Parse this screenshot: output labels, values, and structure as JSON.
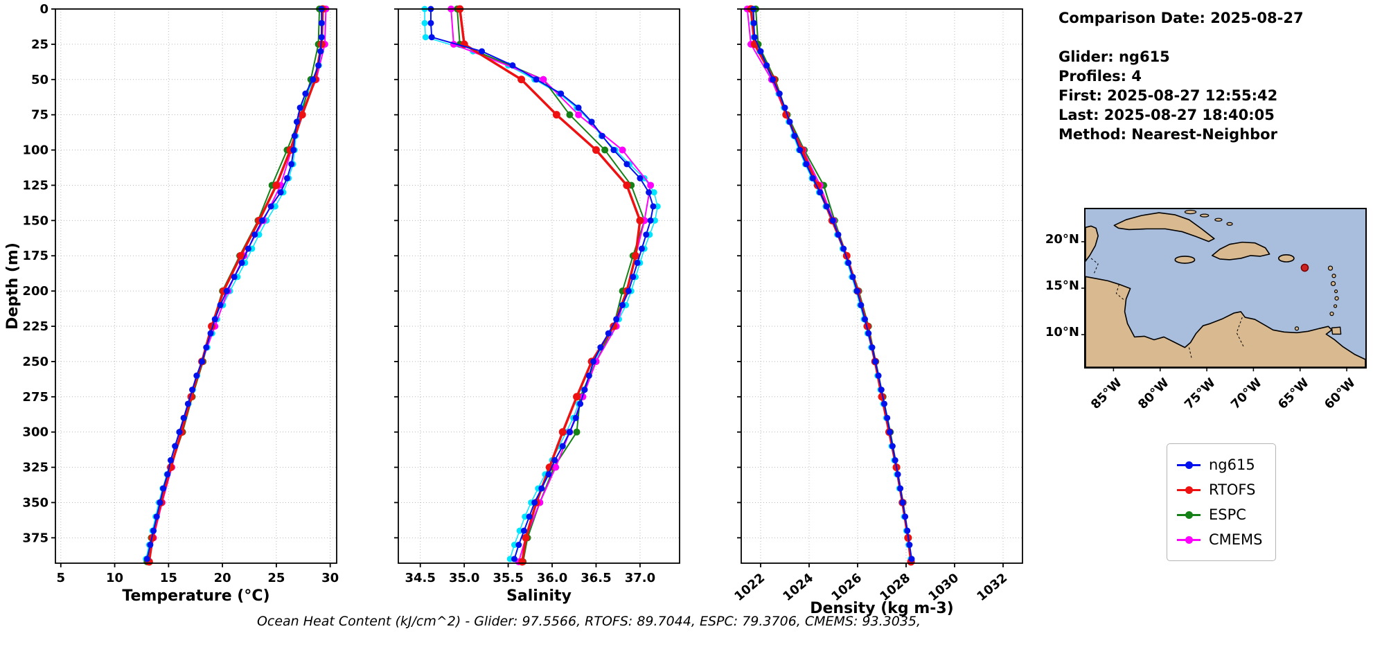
{
  "info_panel": {
    "lines": [
      "Comparison Date: 2025-08-27",
      "Glider: ng615",
      "Profiles: 4",
      "First: 2025-08-27 12:55:42",
      "Last: 2025-08-27 18:40:05",
      "Method: Nearest-Neighbor"
    ]
  },
  "footer": {
    "ohc_text": "Ocean Heat Content (kJ/cm^2) - Glider: 97.5566,  RTOFS: 89.7044,  ESPC: 79.3706,  CMEMS: 93.3035,"
  },
  "legend": {
    "entries": [
      {
        "label": "ng615",
        "color": "#0011ee"
      },
      {
        "label": "RTOFS",
        "color": "#ee1111"
      },
      {
        "label": "ESPC",
        "color": "#158015"
      },
      {
        "label": "CMEMS",
        "color": "#ff00ff"
      }
    ]
  },
  "map": {
    "ocean_color": "#a9bedd",
    "land_color": "#d9b98f",
    "extent": {
      "lon": [
        -88,
        -58
      ],
      "lat": [
        6.5,
        23.5
      ]
    },
    "marker": {
      "lon": -64.5,
      "lat": 17.2,
      "color": "#cc2222"
    },
    "yticks": [
      "20°N",
      "15°N",
      "10°N"
    ],
    "ytick_lats": [
      20,
      15,
      10
    ],
    "xticks": [
      "85°W",
      "80°W",
      "75°W",
      "70°W",
      "65°W",
      "60°W"
    ],
    "xtick_lons": [
      -85,
      -80,
      -75,
      -70,
      -65,
      -60
    ]
  },
  "chart_data": [
    {
      "type": "line",
      "xlabel": "Temperature (°C)",
      "ylabel": "Depth (m)",
      "xlim": [
        4.5,
        30.6
      ],
      "ylim": [
        0,
        393
      ],
      "xticks": [
        5,
        10,
        15,
        20,
        25,
        30
      ],
      "xtick_labels": [
        "5",
        "10",
        "15",
        "20",
        "25",
        "30"
      ],
      "yticks": [
        0,
        25,
        50,
        75,
        100,
        125,
        150,
        175,
        200,
        225,
        250,
        275,
        300,
        325,
        350,
        375
      ],
      "rotate_xticklabels": false,
      "show_yticklabels": true,
      "depths_glider": [
        0,
        10,
        20,
        30,
        40,
        50,
        60,
        70,
        80,
        90,
        100,
        110,
        120,
        130,
        140,
        150,
        160,
        170,
        180,
        190,
        200,
        210,
        220,
        230,
        240,
        250,
        260,
        270,
        280,
        290,
        300,
        310,
        320,
        330,
        340,
        350,
        360,
        370,
        380,
        390
      ],
      "depths_model": [
        0,
        25,
        50,
        75,
        100,
        125,
        150,
        175,
        200,
        225,
        250,
        275,
        300,
        325,
        350,
        375,
        392
      ],
      "series": [
        {
          "name": "glider-raw",
          "color": "#00e5ff",
          "lw": 1.5,
          "ms": 4.5,
          "grid": "glider",
          "values": [
            29.25,
            29.25,
            29.24,
            29.15,
            28.95,
            28.5,
            27.85,
            27.35,
            27.0,
            26.8,
            26.7,
            26.55,
            26.15,
            25.65,
            24.9,
            24.1,
            23.4,
            22.75,
            22.1,
            21.4,
            20.7,
            20.05,
            19.5,
            19.05,
            18.6,
            18.15,
            17.65,
            17.25,
            16.85,
            16.45,
            16.0,
            15.6,
            15.2,
            14.85,
            14.45,
            14.1,
            13.8,
            13.5,
            13.2,
            12.9
          ]
        },
        {
          "name": "ESPC",
          "color": "#158015",
          "lw": 2,
          "ms": 5,
          "grid": "model",
          "values": [
            29.0,
            28.9,
            28.2,
            27.3,
            26.0,
            24.6,
            23.3,
            21.6,
            20.0,
            19.0,
            18.2,
            17.2,
            16.3,
            15.2,
            14.3,
            13.4,
            13.0
          ]
        },
        {
          "name": "CMEMS",
          "color": "#ff00ff",
          "lw": 2,
          "ms": 5,
          "grid": "model",
          "values": [
            29.6,
            29.5,
            28.7,
            27.3,
            26.4,
            25.4,
            23.8,
            22.0,
            20.5,
            19.3,
            18.1,
            17.1,
            16.1,
            15.3,
            14.4,
            13.6,
            13.2
          ]
        },
        {
          "name": "RTOFS",
          "color": "#ee1111",
          "lw": 3.5,
          "ms": 5.5,
          "grid": "model",
          "values": [
            29.3,
            29.2,
            28.6,
            27.4,
            26.3,
            25.0,
            23.4,
            21.7,
            20.1,
            19.0,
            18.1,
            17.1,
            16.2,
            15.2,
            14.3,
            13.5,
            13.2
          ]
        },
        {
          "name": "ng615",
          "color": "#0011ee",
          "lw": 2,
          "ms": 4.5,
          "grid": "glider",
          "values": [
            29.2,
            29.2,
            29.2,
            29.1,
            28.9,
            28.4,
            27.7,
            27.2,
            26.9,
            26.7,
            26.6,
            26.4,
            26.0,
            25.4,
            24.5,
            23.7,
            23.0,
            22.4,
            21.8,
            21.1,
            20.4,
            19.8,
            19.3,
            18.9,
            18.5,
            18.1,
            17.6,
            17.2,
            16.8,
            16.4,
            16.0,
            15.6,
            15.2,
            14.9,
            14.5,
            14.2,
            13.9,
            13.6,
            13.3,
            13.0
          ]
        }
      ]
    },
    {
      "type": "line",
      "xlabel": "Salinity",
      "ylabel": "",
      "xlim": [
        34.25,
        37.45
      ],
      "ylim": [
        0,
        393
      ],
      "xticks": [
        34.5,
        35.0,
        35.5,
        36.0,
        36.5,
        37.0
      ],
      "xtick_labels": [
        "34.5",
        "35.0",
        "35.5",
        "36.0",
        "36.5",
        "37.0"
      ],
      "yticks": [
        0,
        25,
        50,
        75,
        100,
        125,
        150,
        175,
        200,
        225,
        250,
        275,
        300,
        325,
        350,
        375
      ],
      "rotate_xticklabels": false,
      "show_yticklabels": false,
      "depths_glider": [
        0,
        10,
        20,
        30,
        40,
        50,
        60,
        70,
        80,
        90,
        100,
        110,
        120,
        130,
        140,
        150,
        160,
        170,
        180,
        190,
        200,
        210,
        220,
        230,
        240,
        250,
        260,
        270,
        280,
        290,
        300,
        310,
        320,
        330,
        340,
        350,
        360,
        370,
        380,
        390
      ],
      "depths_model": [
        0,
        25,
        50,
        75,
        100,
        125,
        150,
        175,
        200,
        225,
        250,
        275,
        300,
        325,
        350,
        375,
        392
      ],
      "series": [
        {
          "name": "glider-raw",
          "color": "#00e5ff",
          "lw": 1.5,
          "ms": 4.5,
          "grid": "glider",
          "values": [
            34.55,
            34.55,
            34.56,
            35.1,
            35.5,
            35.8,
            36.08,
            36.28,
            36.44,
            36.56,
            36.72,
            36.88,
            37.05,
            37.16,
            37.2,
            37.17,
            37.11,
            37.05,
            37.0,
            36.95,
            36.9,
            36.84,
            36.76,
            36.66,
            36.56,
            36.48,
            36.42,
            36.36,
            36.3,
            36.24,
            36.16,
            36.08,
            36.0,
            35.92,
            35.84,
            35.76,
            35.69,
            35.63,
            35.57,
            35.52
          ]
        },
        {
          "name": "ESPC",
          "color": "#158015",
          "lw": 2,
          "ms": 5,
          "grid": "model",
          "values": [
            34.92,
            34.95,
            35.9,
            36.2,
            36.6,
            36.9,
            37.05,
            36.92,
            36.8,
            36.7,
            36.5,
            36.32,
            36.28,
            36.02,
            35.86,
            35.72,
            35.67
          ]
        },
        {
          "name": "CMEMS",
          "color": "#ff00ff",
          "lw": 2,
          "ms": 5,
          "grid": "model",
          "values": [
            34.85,
            34.88,
            35.9,
            36.3,
            36.8,
            37.12,
            37.05,
            36.95,
            36.85,
            36.73,
            36.5,
            36.35,
            36.2,
            36.04,
            35.86,
            35.7,
            35.62
          ]
        },
        {
          "name": "RTOFS",
          "color": "#ee1111",
          "lw": 3.5,
          "ms": 5.5,
          "grid": "model",
          "values": [
            34.95,
            35.0,
            35.65,
            36.05,
            36.5,
            36.85,
            37.0,
            36.95,
            36.85,
            36.7,
            36.45,
            36.28,
            36.12,
            35.97,
            35.82,
            35.7,
            35.66
          ]
        },
        {
          "name": "ng615",
          "color": "#0011ee",
          "lw": 2,
          "ms": 4.5,
          "grid": "glider",
          "values": [
            34.62,
            34.62,
            34.63,
            35.2,
            35.55,
            35.82,
            36.1,
            36.3,
            36.45,
            36.57,
            36.7,
            36.85,
            37.0,
            37.1,
            37.15,
            37.12,
            37.07,
            37.02,
            36.97,
            36.92,
            36.87,
            36.8,
            36.73,
            36.64,
            36.55,
            36.47,
            36.42,
            36.37,
            36.32,
            36.27,
            36.2,
            36.12,
            36.03,
            35.96,
            35.88,
            35.8,
            35.74,
            35.68,
            35.62,
            35.57
          ]
        }
      ]
    },
    {
      "type": "line",
      "xlabel": "Density (kg m-3)",
      "ylabel": "",
      "xlim": [
        1021.2,
        1032.8
      ],
      "ylim": [
        0,
        393
      ],
      "xticks": [
        1022,
        1024,
        1026,
        1028,
        1030,
        1032
      ],
      "xtick_labels": [
        "1022",
        "1024",
        "1026",
        "1028",
        "1030",
        "1032"
      ],
      "yticks": [
        0,
        25,
        50,
        75,
        100,
        125,
        150,
        175,
        200,
        225,
        250,
        275,
        300,
        325,
        350,
        375
      ],
      "rotate_xticklabels": true,
      "show_yticklabels": false,
      "depths_glider": [
        0,
        10,
        20,
        30,
        40,
        50,
        60,
        70,
        80,
        90,
        100,
        110,
        120,
        130,
        140,
        150,
        160,
        170,
        180,
        190,
        200,
        210,
        220,
        230,
        240,
        250,
        260,
        270,
        280,
        290,
        300,
        310,
        320,
        330,
        340,
        350,
        360,
        370,
        380,
        390
      ],
      "depths_model": [
        0,
        25,
        50,
        75,
        100,
        125,
        150,
        175,
        200,
        225,
        250,
        275,
        300,
        325,
        350,
        375,
        392
      ],
      "series": [
        {
          "name": "glider-raw",
          "color": "#00e5ff",
          "lw": 1.5,
          "ms": 4.5,
          "grid": "glider",
          "values": [
            1021.66,
            1021.68,
            1021.71,
            1021.96,
            1022.21,
            1022.46,
            1022.74,
            1022.96,
            1023.16,
            1023.36,
            1023.58,
            1023.84,
            1024.11,
            1024.41,
            1024.68,
            1024.94,
            1025.16,
            1025.38,
            1025.58,
            1025.76,
            1025.94,
            1026.1,
            1026.26,
            1026.41,
            1026.56,
            1026.69,
            1026.82,
            1026.94,
            1027.06,
            1027.18,
            1027.29,
            1027.4,
            1027.51,
            1027.62,
            1027.72,
            1027.82,
            1027.92,
            1028.01,
            1028.1,
            1028.19
          ]
        },
        {
          "name": "ESPC",
          "color": "#158015",
          "lw": 2,
          "ms": 5,
          "grid": "model",
          "values": [
            1021.8,
            1021.9,
            1022.6,
            1023.1,
            1023.8,
            1024.6,
            1025.05,
            1025.55,
            1026.05,
            1026.45,
            1026.75,
            1027.05,
            1027.35,
            1027.62,
            1027.88,
            1028.1,
            1028.22
          ]
        },
        {
          "name": "CMEMS",
          "color": "#ff00ff",
          "lw": 2,
          "ms": 5,
          "grid": "model",
          "values": [
            1021.45,
            1021.6,
            1022.45,
            1023.05,
            1023.75,
            1024.45,
            1025.0,
            1025.55,
            1026.02,
            1026.42,
            1026.72,
            1027.02,
            1027.32,
            1027.6,
            1027.86,
            1028.08,
            1028.2
          ]
        },
        {
          "name": "RTOFS",
          "color": "#ee1111",
          "lw": 3.5,
          "ms": 5.5,
          "grid": "model",
          "values": [
            1021.6,
            1021.75,
            1022.55,
            1023.05,
            1023.7,
            1024.35,
            1024.95,
            1025.55,
            1026.0,
            1026.4,
            1026.72,
            1027.0,
            1027.3,
            1027.6,
            1027.85,
            1028.08,
            1028.2
          ]
        },
        {
          "name": "ng615",
          "color": "#0011ee",
          "lw": 2,
          "ms": 4.5,
          "grid": "glider",
          "values": [
            1021.7,
            1021.72,
            1021.75,
            1022.0,
            1022.25,
            1022.5,
            1022.78,
            1023.0,
            1023.2,
            1023.4,
            1023.62,
            1023.88,
            1024.15,
            1024.45,
            1024.72,
            1024.98,
            1025.2,
            1025.42,
            1025.62,
            1025.8,
            1025.98,
            1026.14,
            1026.3,
            1026.45,
            1026.6,
            1026.73,
            1026.86,
            1026.98,
            1027.1,
            1027.22,
            1027.33,
            1027.44,
            1027.55,
            1027.66,
            1027.76,
            1027.86,
            1027.96,
            1028.05,
            1028.14,
            1028.23
          ]
        }
      ]
    }
  ]
}
